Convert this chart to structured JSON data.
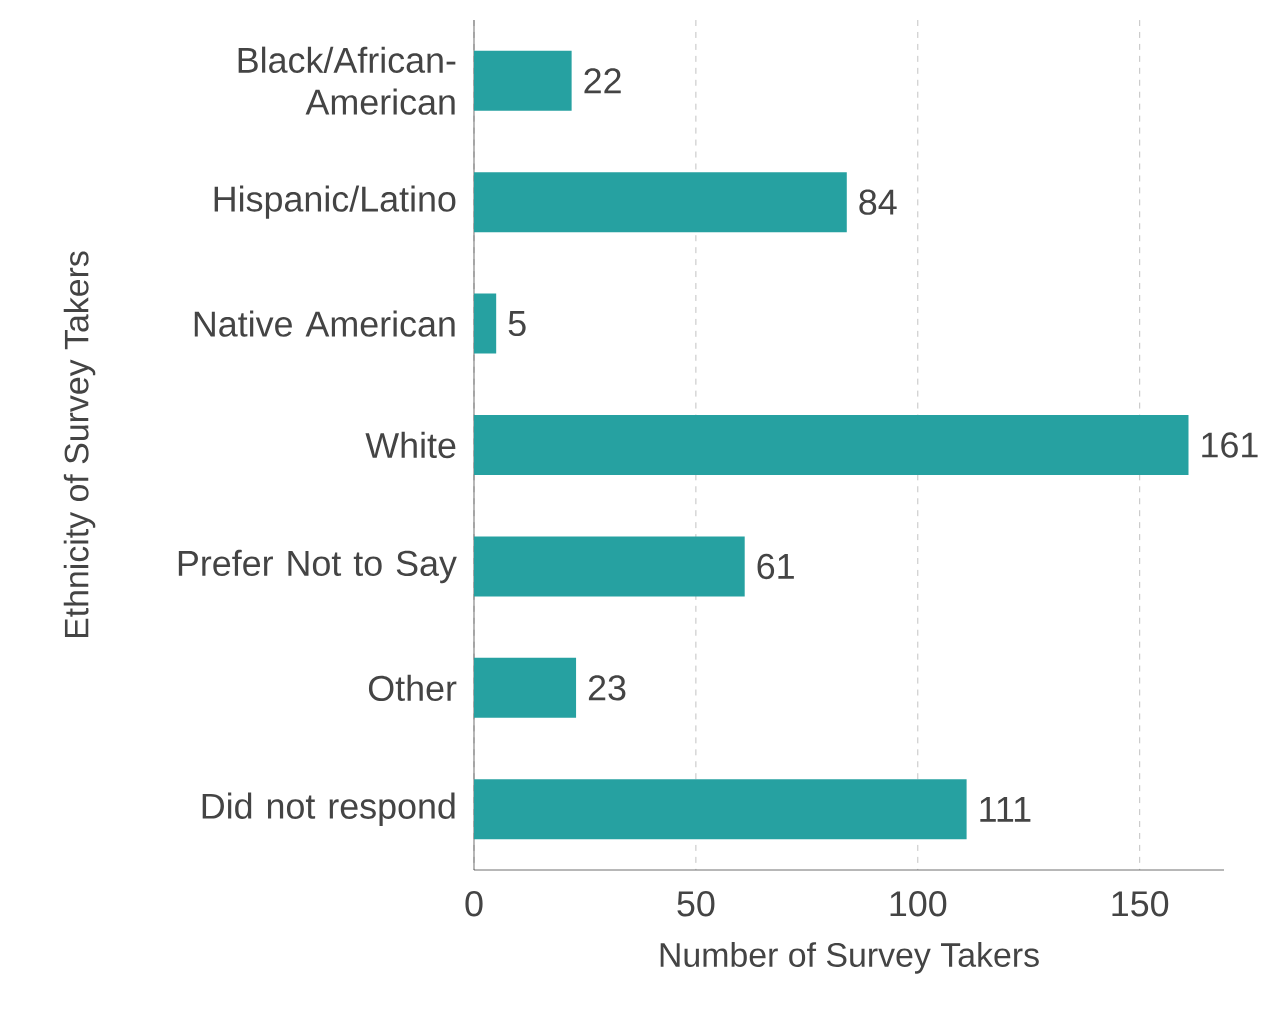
{
  "chart_data": {
    "type": "bar",
    "orientation": "horizontal",
    "xlabel": "Number of Survey Takers",
    "ylabel": "Ethnicity of Survey Takers",
    "categories": [
      "Black/African-American",
      "Hispanic/Latino",
      "Native American",
      "White",
      "Prefer Not to Say",
      "Other",
      "Did not respond"
    ],
    "values": [
      22,
      84,
      5,
      161,
      61,
      23,
      111
    ],
    "color": "#26a1a1",
    "xlim": [
      0,
      169
    ],
    "xticks": [
      0,
      50,
      100,
      150
    ],
    "grid": "x",
    "data_labels": true
  }
}
